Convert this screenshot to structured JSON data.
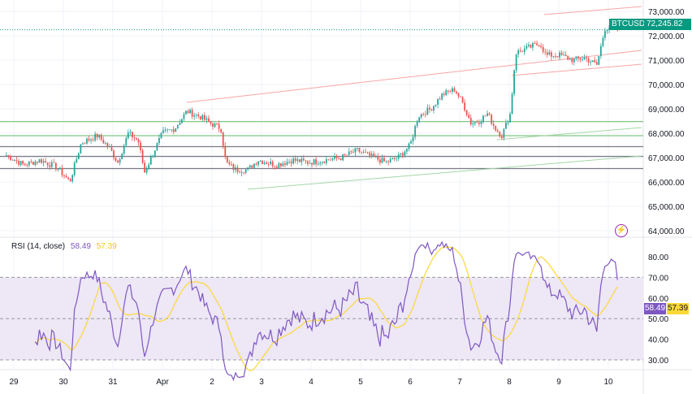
{
  "symbol": "BTCUSD",
  "last_price": "72,245.82",
  "colors": {
    "up": "#26a69a",
    "down": "#ef5350",
    "rsi": "#7e57c2",
    "rsi_ma": "#fdd835",
    "badge": "#089981",
    "band": "#ede7f6",
    "grid": "#f0f3fa",
    "text": "#131722"
  },
  "rsi_legend": {
    "label": "RSI (14, close)",
    "rsi_value": "58.49",
    "ma_value": "57.39"
  },
  "rsi_badges": {
    "rsi": "58.49",
    "ma": "57.39"
  },
  "icons": {
    "alert": "lightning-icon"
  },
  "chart_data": [
    {
      "type": "candlestick",
      "title": "BTCUSD",
      "ylim": [
        64000,
        73200
      ],
      "yticks": [
        "73,000.00",
        "72,000.00",
        "71,000.00",
        "70,000.00",
        "69,000.00",
        "68,000.00",
        "67,000.00",
        "66,000.00",
        "65,000.00",
        "64,000.00"
      ],
      "ytick_values": [
        73000,
        72000,
        71000,
        70000,
        69000,
        68000,
        67000,
        66000,
        65000,
        64000
      ],
      "xticks": [
        "29",
        "30",
        "31",
        "Apr",
        "2",
        "3",
        "4",
        "5",
        "6",
        "7",
        "8",
        "9",
        "10"
      ],
      "x_unit": "days since Mar 29",
      "close_keypoints": [
        [
          -0.15,
          67100
        ],
        [
          0.2,
          66700
        ],
        [
          0.54,
          66900
        ],
        [
          0.87,
          66600
        ],
        [
          1.13,
          66000
        ],
        [
          1.36,
          67600
        ],
        [
          1.69,
          67900
        ],
        [
          1.93,
          67400
        ],
        [
          2.1,
          66800
        ],
        [
          2.31,
          68000
        ],
        [
          2.51,
          67700
        ],
        [
          2.64,
          66400
        ],
        [
          2.84,
          67300
        ],
        [
          3.0,
          68000
        ],
        [
          3.25,
          68200
        ],
        [
          3.49,
          68900
        ],
        [
          3.74,
          68700
        ],
        [
          3.98,
          68400
        ],
        [
          4.18,
          68200
        ],
        [
          4.28,
          66800
        ],
        [
          4.48,
          66500
        ],
        [
          4.72,
          66500
        ],
        [
          4.93,
          66900
        ],
        [
          5.3,
          66700
        ],
        [
          5.62,
          66900
        ],
        [
          5.95,
          66800
        ],
        [
          6.28,
          66900
        ],
        [
          6.61,
          67000
        ],
        [
          6.93,
          67300
        ],
        [
          7.26,
          67000
        ],
        [
          7.51,
          66800
        ],
        [
          7.75,
          67000
        ],
        [
          8.0,
          67500
        ],
        [
          8.16,
          68700
        ],
        [
          8.41,
          69000
        ],
        [
          8.66,
          69600
        ],
        [
          8.9,
          69800
        ],
        [
          9.07,
          69200
        ],
        [
          9.23,
          68400
        ],
        [
          9.39,
          68500
        ],
        [
          9.56,
          68800
        ],
        [
          9.72,
          68200
        ],
        [
          9.85,
          67900
        ],
        [
          10.02,
          68800
        ],
        [
          10.13,
          71300
        ],
        [
          10.38,
          71500
        ],
        [
          10.62,
          71700
        ],
        [
          10.74,
          71200
        ],
        [
          11.03,
          71200
        ],
        [
          11.28,
          71000
        ],
        [
          11.52,
          71100
        ],
        [
          11.77,
          70800
        ],
        [
          11.93,
          72300
        ],
        [
          12.1,
          72400
        ],
        [
          12.21,
          72245.82
        ]
      ],
      "horizontal_levels": [
        {
          "price": 68480,
          "color": "#81c784"
        },
        {
          "price": 67900,
          "color": "#81c784"
        },
        {
          "price": 67450,
          "color": "#787b86"
        },
        {
          "price": 67050,
          "color": "#787b86"
        },
        {
          "price": 66550,
          "color": "#787b86"
        }
      ],
      "trendlines": [
        {
          "points": [
            [
              3.49,
              69267
            ],
            [
              12.67,
              71400
            ]
          ],
          "color": "#f8a5a5"
        },
        {
          "points": [
            [
              10.7,
              72867
            ],
            [
              12.67,
              73200
            ]
          ],
          "color": "#f8a5a5"
        },
        {
          "points": [
            [
              10.05,
              70367
            ],
            [
              12.67,
              70833
            ]
          ],
          "color": "#f8a5a5"
        },
        {
          "points": [
            [
              4.72,
              65700
            ],
            [
              12.67,
              67067
            ]
          ],
          "color": "#a5d6a7"
        },
        {
          "points": [
            [
              9.75,
              67733
            ],
            [
              12.67,
              68233
            ]
          ],
          "color": "#a5d6a7"
        }
      ]
    },
    {
      "type": "line",
      "title": "RSI (14, close)",
      "ylim": [
        25,
        85
      ],
      "yticks": [
        "80.00",
        "70.00",
        "60.00",
        "50.00",
        "40.00",
        "30.00"
      ],
      "ytick_values": [
        80,
        70,
        60,
        50,
        40,
        30
      ],
      "bands": {
        "upper": 70,
        "middle": 50,
        "lower": 30
      },
      "series": [
        {
          "name": "RSI",
          "last": 58.49
        },
        {
          "name": "RSI-based MA",
          "last": 57.39
        }
      ]
    }
  ]
}
